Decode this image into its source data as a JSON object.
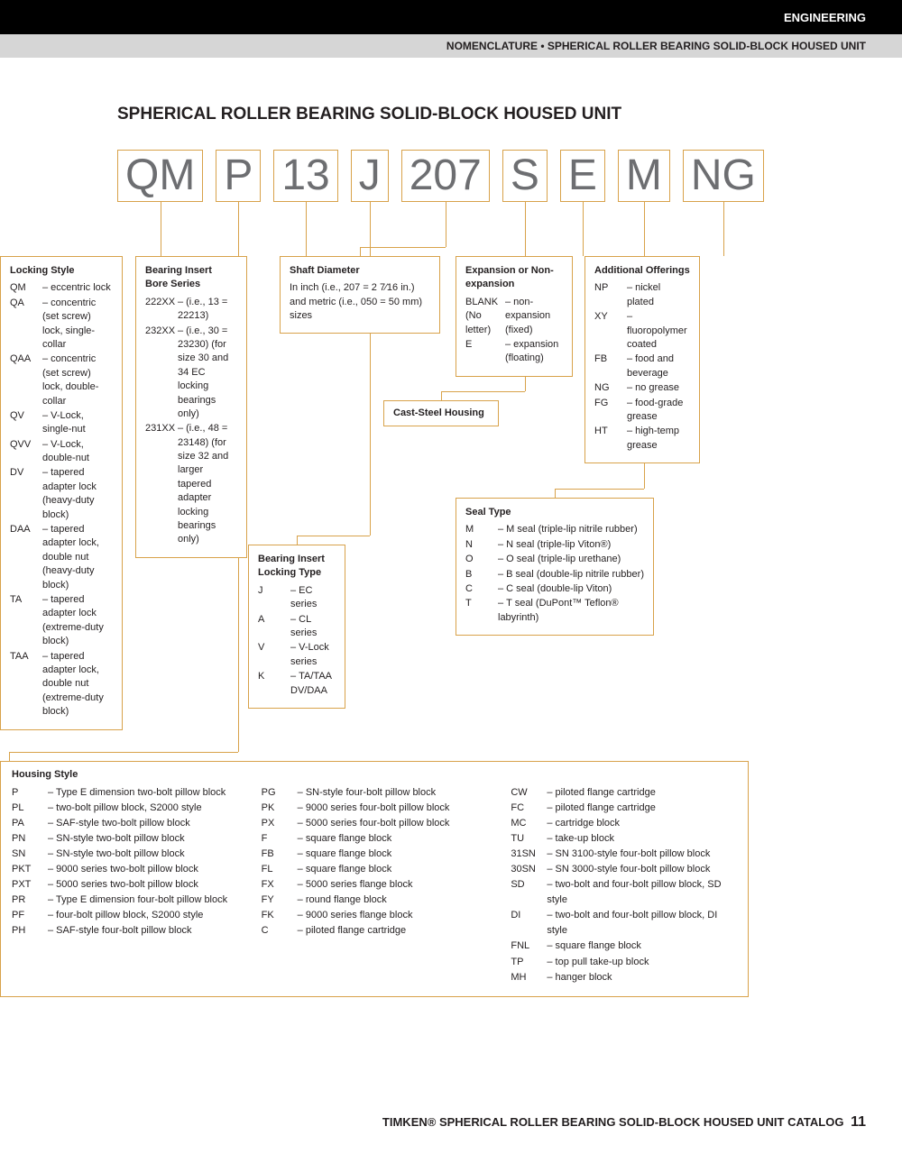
{
  "header": {
    "category": "ENGINEERING",
    "subheading": "NOMENCLATURE • SPHERICAL ROLLER BEARING SOLID-BLOCK HOUSED UNIT"
  },
  "title": "SPHERICAL ROLLER BEARING SOLID-BLOCK HOUSED UNIT",
  "codes": [
    "QM",
    "P",
    "13",
    "J",
    "207",
    "S",
    "E",
    "M",
    "NG"
  ],
  "boxes": {
    "locking_style": {
      "title": "Locking Style",
      "items": [
        {
          "c": "QM",
          "d": "eccentric lock"
        },
        {
          "c": "QA",
          "d": "concentric (set screw) lock, single-collar"
        },
        {
          "c": "QAA",
          "d": "concentric (set screw) lock, double-collar"
        },
        {
          "c": "QV",
          "d": "V-Lock, single-nut"
        },
        {
          "c": "QVV",
          "d": "V-Lock, double-nut"
        },
        {
          "c": "DV",
          "d": "tapered adapter lock (heavy-duty block)"
        },
        {
          "c": "DAA",
          "d": "tapered adapter lock, double nut (heavy-duty block)"
        },
        {
          "c": "TA",
          "d": "tapered adapter lock (extreme-duty block)"
        },
        {
          "c": "TAA",
          "d": "tapered adapter lock, double nut (extreme-duty block)"
        }
      ]
    },
    "bore_series": {
      "title": "Bearing Insert Bore Series",
      "items": [
        {
          "c": "222XX",
          "d": "(i.e., 13 = 22213)"
        },
        {
          "c": "232XX",
          "d": "(i.e., 30 = 23230) (for size 30 and 34 EC locking bearings only)"
        },
        {
          "c": "231XX",
          "d": "(i.e., 48 = 23148) (for size 32 and larger tapered adapter locking bearings only)"
        }
      ]
    },
    "locking_type": {
      "title": "Bearing Insert Locking Type",
      "items": [
        {
          "c": "J",
          "d": "EC series"
        },
        {
          "c": "A",
          "d": "CL series"
        },
        {
          "c": "V",
          "d": "V-Lock series"
        },
        {
          "c": "K",
          "d": "TA/TAA DV/DAA"
        }
      ]
    },
    "shaft_diameter": {
      "title": "Shaft Diameter",
      "text": "In inch (i.e., 207 = 2 7⁄16 in.) and metric (i.e., 050 = 50 mm) sizes"
    },
    "cast_steel": {
      "title": "Cast-Steel Housing"
    },
    "expansion": {
      "title": "Expansion or Non-expansion",
      "items": [
        {
          "c": "BLANK (No letter)",
          "d": "non-expansion (fixed)"
        },
        {
          "c": "E",
          "d": "expansion (floating)"
        }
      ]
    },
    "seal_type": {
      "title": "Seal Type",
      "items": [
        {
          "c": "M",
          "d": "M seal (triple-lip nitrile rubber)"
        },
        {
          "c": "N",
          "d": "N seal (triple-lip Viton®)"
        },
        {
          "c": "O",
          "d": "O seal (triple-lip urethane)"
        },
        {
          "c": "B",
          "d": "B seal (double-lip nitrile rubber)"
        },
        {
          "c": "C",
          "d": "C seal (double-lip Viton)"
        },
        {
          "c": "T",
          "d": "T seal (DuPont™ Teflon® labyrinth)"
        }
      ]
    },
    "additional": {
      "title": "Additional Offerings",
      "items": [
        {
          "c": "NP",
          "d": "nickel plated"
        },
        {
          "c": "XY",
          "d": "fluoropolymer coated"
        },
        {
          "c": "FB",
          "d": "food and beverage"
        },
        {
          "c": "NG",
          "d": "no grease"
        },
        {
          "c": "FG",
          "d": "food-grade grease"
        },
        {
          "c": "HT",
          "d": "high-temp grease"
        }
      ]
    },
    "housing_style": {
      "title": "Housing Style",
      "col1": [
        {
          "c": "P",
          "d": "Type E dimension two-bolt pillow block"
        },
        {
          "c": "PL",
          "d": "two-bolt pillow block, S2000 style"
        },
        {
          "c": "PA",
          "d": "SAF-style two-bolt pillow block"
        },
        {
          "c": "PN",
          "d": "SN-style two-bolt pillow block"
        },
        {
          "c": "SN",
          "d": "SN-style two-bolt pillow block"
        },
        {
          "c": "PKT",
          "d": "9000 series two-bolt pillow block"
        },
        {
          "c": "PXT",
          "d": "5000 series two-bolt pillow block"
        },
        {
          "c": "PR",
          "d": "Type E dimension four-bolt pillow block"
        },
        {
          "c": "PF",
          "d": "four-bolt pillow block, S2000 style"
        },
        {
          "c": "PH",
          "d": "SAF-style four-bolt pillow block"
        }
      ],
      "col2": [
        {
          "c": "PG",
          "d": "SN-style four-bolt pillow block"
        },
        {
          "c": "PK",
          "d": "9000 series four-bolt pillow block"
        },
        {
          "c": "PX",
          "d": "5000 series four-bolt pillow block"
        },
        {
          "c": "F",
          "d": "square flange block"
        },
        {
          "c": "FB",
          "d": "square flange block"
        },
        {
          "c": "FL",
          "d": "square flange block"
        },
        {
          "c": "FX",
          "d": "5000 series flange block"
        },
        {
          "c": "FY",
          "d": "round flange block"
        },
        {
          "c": "FK",
          "d": "9000 series flange block"
        },
        {
          "c": "C",
          "d": "piloted flange cartridge"
        }
      ],
      "col3": [
        {
          "c": "CW",
          "d": "piloted flange cartridge"
        },
        {
          "c": "FC",
          "d": "piloted flange cartridge"
        },
        {
          "c": "MC",
          "d": "cartridge block"
        },
        {
          "c": "TU",
          "d": "take-up block"
        },
        {
          "c": "31SN",
          "d": "SN 3100-style four-bolt pillow block"
        },
        {
          "c": "30SN",
          "d": "SN 3000-style four-bolt pillow block"
        },
        {
          "c": "SD",
          "d": "two-bolt and four-bolt pillow block, SD style"
        },
        {
          "c": "DI",
          "d": "two-bolt and four-bolt pillow block, DI style"
        },
        {
          "c": "FNL",
          "d": "square flange block"
        },
        {
          "c": "TP",
          "d": "top pull take-up block"
        },
        {
          "c": "MH",
          "d": "hanger block"
        }
      ]
    }
  },
  "footer": {
    "text": "TIMKEN® SPHERICAL ROLLER BEARING SOLID-BLOCK HOUSED UNIT CATALOG",
    "page": "11"
  },
  "colors": {
    "border": "#d8a24a",
    "code_text": "#6d6e71",
    "text": "#231f20"
  }
}
